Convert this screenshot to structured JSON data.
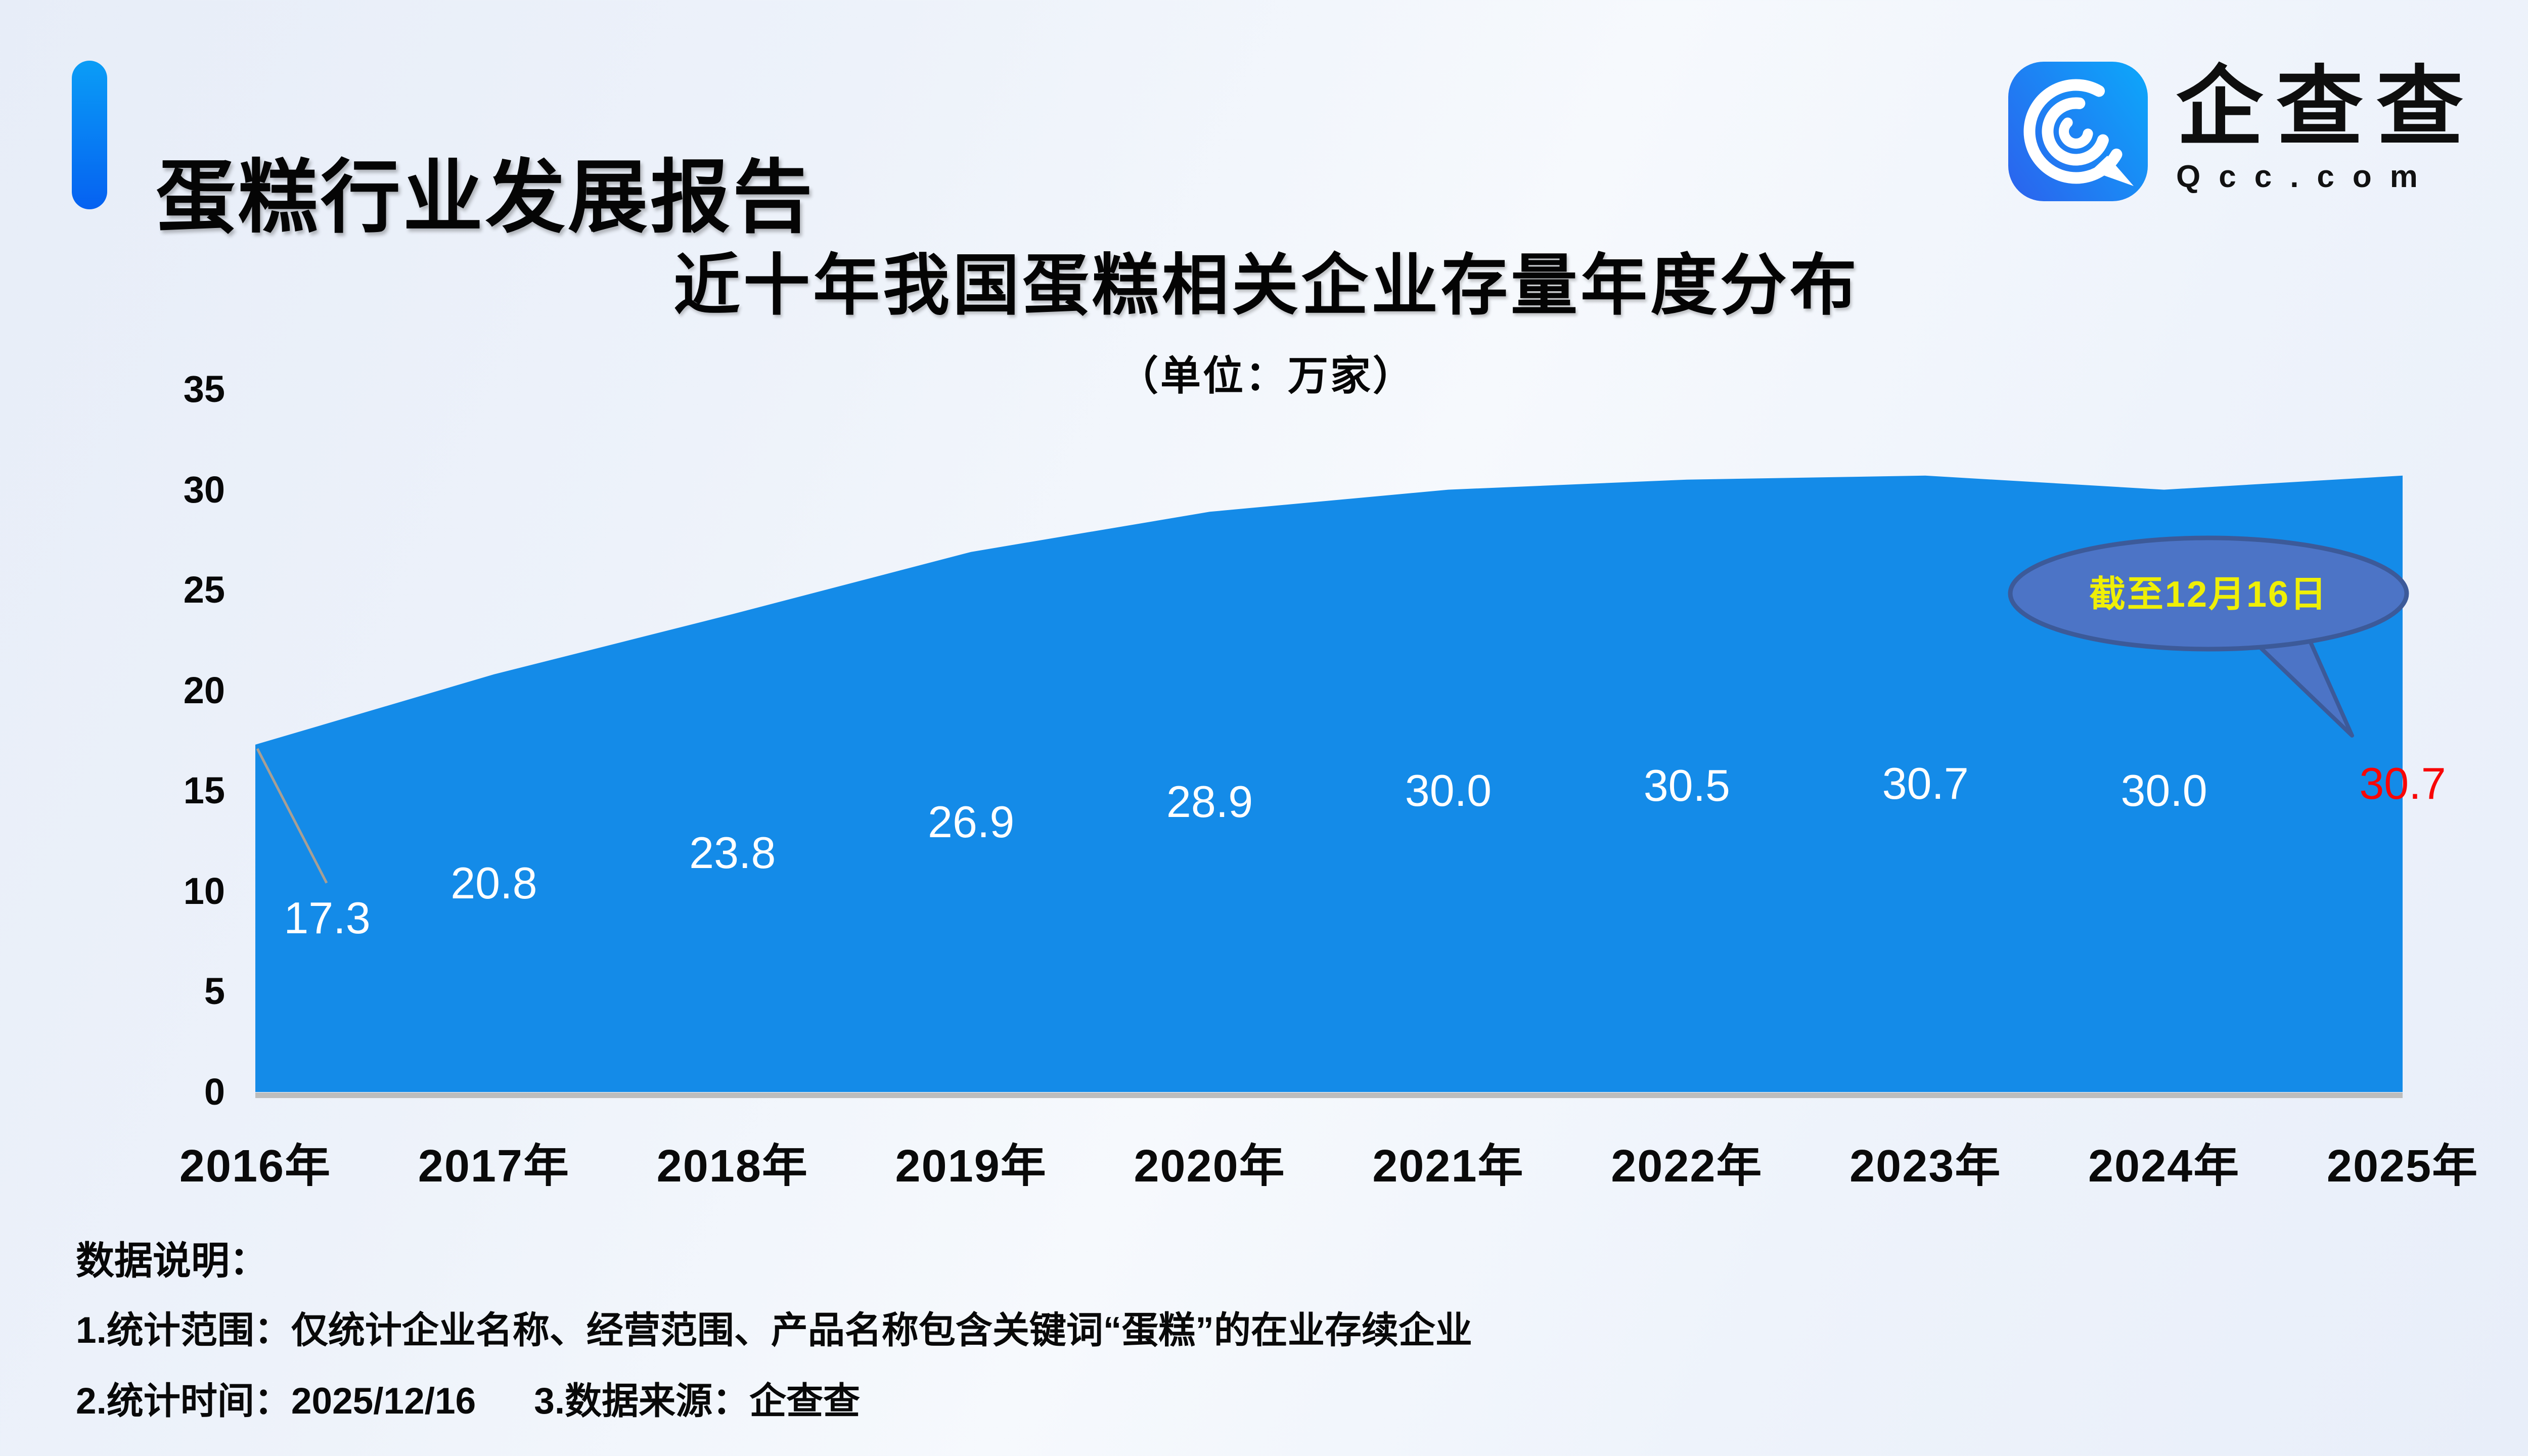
{
  "header": {
    "title": "蛋糕行业发展报告",
    "logo_name": "企查查",
    "logo_domain": "Qcc.com"
  },
  "chart_data": {
    "type": "area",
    "title": "近十年我国蛋糕相关企业存量年度分布",
    "subtitle": "（单位：万家）",
    "categories": [
      "2016年",
      "2017年",
      "2018年",
      "2019年",
      "2020年",
      "2021年",
      "2022年",
      "2023年",
      "2024年",
      "2025年"
    ],
    "values": [
      17.3,
      20.8,
      23.8,
      26.9,
      28.9,
      30.0,
      30.5,
      30.7,
      30.0,
      30.7
    ],
    "value_label_decimals": 1,
    "ylim": [
      0,
      35
    ],
    "yticks": [
      0,
      5,
      10,
      15,
      20,
      25,
      30,
      35
    ],
    "xlabel": "",
    "ylabel": "",
    "grid": false,
    "legend": false,
    "annotation": {
      "label": "截至12月16日",
      "applies_to": "2025年"
    },
    "highlighted_last_value": 30.7
  },
  "footer": {
    "heading": "数据说明：",
    "note1": "1.统计范围：仅统计企业名称、经营范围、产品名称包含关键词“蛋糕”的在业存续企业",
    "note2": "2.统计时间：2025/12/16",
    "note3": "3.数据来源：企查查"
  },
  "colors": {
    "area": "#148BE8",
    "accent_bar_top": "#0A9DF6",
    "accent_bar_bottom": "#0561F1",
    "logo_gradient_start": "#2A66EE",
    "logo_gradient_end": "#0EA4FA",
    "callout_fill": "#4C74C6",
    "callout_border": "#3C5A99",
    "callout_text": "#EFEF06",
    "highlight_value": "#F80606",
    "data_label": "#FFFFFF",
    "leader_line": "#A89F94",
    "baseline": "#BDBDBD",
    "text": "#060606"
  }
}
